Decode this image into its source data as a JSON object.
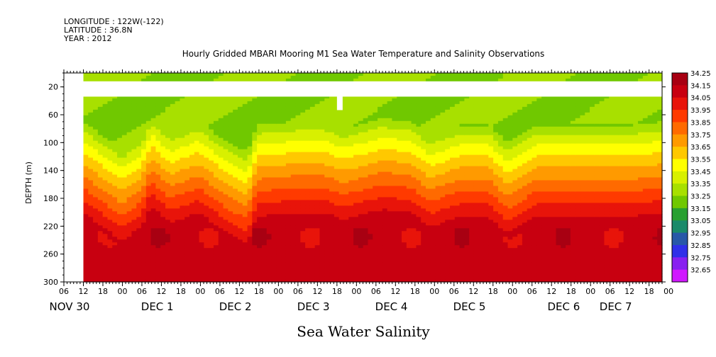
{
  "header": {
    "longitude": "LONGITUDE : 122W(-122)",
    "latitude": "LATITUDE : 36.8N",
    "year": "YEAR : 2012"
  },
  "chart_data": {
    "type": "heatmap",
    "title": "Hourly Gridded MBARI Mooring M1 Sea Water Temperature and Salinity Observations",
    "xlabel": "Sea Water Salinity",
    "ylabel": "DEPTH (m)",
    "y_ticks": [
      20,
      60,
      100,
      140,
      180,
      220,
      260,
      300
    ],
    "y_range": [
      0,
      300
    ],
    "y_inverted": true,
    "x_range_hours": [
      0,
      180
    ],
    "x_hour_ticks": [
      "06",
      "12",
      "18",
      "00",
      "06",
      "12",
      "18",
      "00",
      "06",
      "12",
      "18",
      "00",
      "06",
      "12",
      "18",
      "00",
      "06",
      "12",
      "18",
      "00",
      "06",
      "12",
      "18",
      "00",
      "06",
      "12",
      "18",
      "00",
      "06",
      "12",
      "18",
      "00"
    ],
    "x_day_labels": [
      {
        "label": "NOV 30",
        "hour": -6
      },
      {
        "label": "DEC  1",
        "hour": 21
      },
      {
        "label": "DEC  2",
        "hour": 45
      },
      {
        "label": "DEC  3",
        "hour": 69
      },
      {
        "label": "DEC  4",
        "hour": 93
      },
      {
        "label": "DEC  5",
        "hour": 117
      },
      {
        "label": "DEC  6",
        "hour": 146
      },
      {
        "label": "DEC 7",
        "hour": 162
      }
    ],
    "colorbar_levels": [
      "34.25",
      "34.15",
      "34.05",
      "33.95",
      "33.85",
      "33.75",
      "33.65",
      "33.55",
      "33.45",
      "33.35",
      "33.25",
      "33.15",
      "33.05",
      "32.95",
      "32.85",
      "32.75",
      "32.65"
    ],
    "colorbar_colors": [
      "#a80012",
      "#c80010",
      "#e8140a",
      "#ff3a00",
      "#ff6a00",
      "#ff9a00",
      "#ffc800",
      "#ffff00",
      "#d8f000",
      "#a8e000",
      "#70c800",
      "#28a030",
      "#1a8a6a",
      "#2858a8",
      "#3030e8",
      "#8820f0",
      "#d018ff"
    ],
    "missing_depth_band": [
      12,
      34
    ],
    "data_start_hour": 0,
    "surface_salinity": 33.3,
    "mid_depth_salinity": 33.6,
    "deep_salinity": 34.15,
    "halocline_depth_profile": [
      {
        "hour": 0,
        "depth": 120
      },
      {
        "hour": 12,
        "depth": 160
      },
      {
        "hour": 18,
        "depth": 140
      },
      {
        "hour": 21,
        "depth": 110
      },
      {
        "hour": 27,
        "depth": 135
      },
      {
        "hour": 36,
        "depth": 120
      },
      {
        "hour": 45,
        "depth": 150
      },
      {
        "hour": 51,
        "depth": 165
      },
      {
        "hour": 54,
        "depth": 125
      },
      {
        "hour": 66,
        "depth": 120
      },
      {
        "hour": 75,
        "depth": 120
      },
      {
        "hour": 81,
        "depth": 130
      },
      {
        "hour": 93,
        "depth": 115
      },
      {
        "hour": 102,
        "depth": 120
      },
      {
        "hour": 108,
        "depth": 140
      },
      {
        "hour": 117,
        "depth": 125
      },
      {
        "hour": 126,
        "depth": 125
      },
      {
        "hour": 132,
        "depth": 150
      },
      {
        "hour": 141,
        "depth": 125
      },
      {
        "hour": 150,
        "depth": 125
      },
      {
        "hour": 162,
        "depth": 125
      },
      {
        "hour": 171,
        "depth": 125
      },
      {
        "hour": 180,
        "depth": 120
      }
    ]
  }
}
